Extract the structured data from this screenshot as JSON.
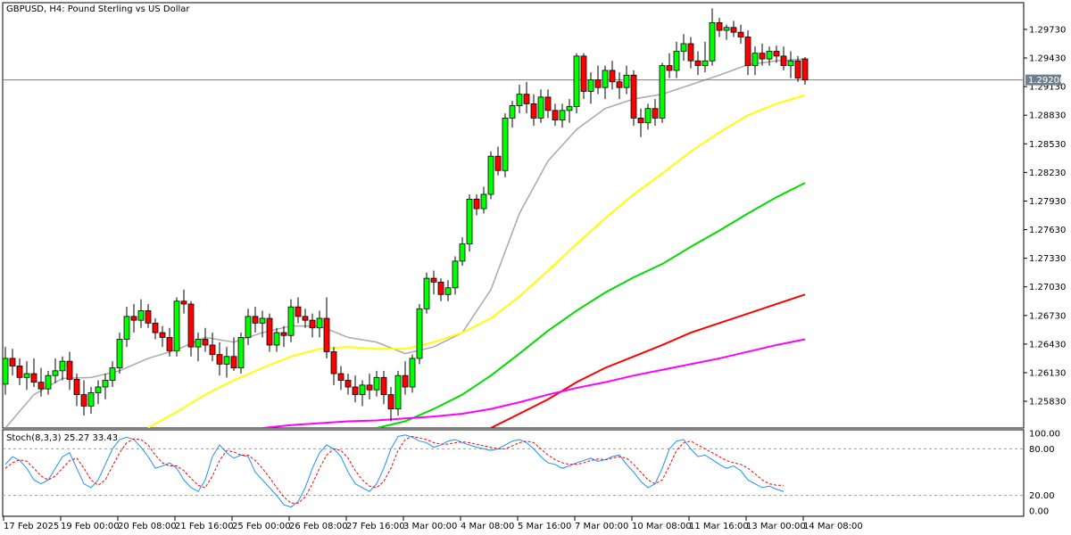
{
  "chart_data": {
    "type": "candlestick",
    "title": "GBPUSD, H4:  Pound Sterling vs US Dollar",
    "current_price": "1.29200",
    "price_axis": {
      "ticks": [
        "1.29730",
        "1.29430",
        "1.29130",
        "1.28830",
        "1.28530",
        "1.28230",
        "1.27930",
        "1.27630",
        "1.27330",
        "1.27030",
        "1.26730",
        "1.26430",
        "1.26130",
        "1.25830"
      ],
      "tick_values": [
        1.2973,
        1.2943,
        1.2913,
        1.2883,
        1.2853,
        1.2823,
        1.2793,
        1.2763,
        1.2733,
        1.2703,
        1.2673,
        1.2643,
        1.2613,
        1.2583
      ],
      "range": [
        1.2555,
        1.3001
      ]
    },
    "time_axis": {
      "ticks": [
        "17 Feb 2025",
        "19 Feb 00:00",
        "20 Feb 08:00",
        "21 Feb 16:00",
        "25 Feb 00:00",
        "26 Feb 08:00",
        "27 Feb 16:00",
        "3 Mar 00:00",
        "4 Mar 08:00",
        "5 Mar 16:00",
        "7 Mar 00:00",
        "10 Mar 08:00",
        "11 Mar 16:00",
        "13 Mar 00:00",
        "14 Mar 08:00"
      ],
      "tick_bar_index": [
        0,
        8,
        16,
        24,
        32,
        40,
        48,
        56,
        64,
        72,
        80,
        88,
        96,
        104,
        112
      ]
    },
    "candles": [
      {
        "o": 1.2601,
        "h": 1.264,
        "l": 1.259,
        "c": 1.2628
      },
      {
        "o": 1.2628,
        "h": 1.2638,
        "l": 1.261,
        "c": 1.262
      },
      {
        "o": 1.262,
        "h": 1.2628,
        "l": 1.26,
        "c": 1.2608
      },
      {
        "o": 1.2608,
        "h": 1.2625,
        "l": 1.2595,
        "c": 1.2612
      },
      {
        "o": 1.2612,
        "h": 1.2628,
        "l": 1.2598,
        "c": 1.2603
      },
      {
        "o": 1.2603,
        "h": 1.2618,
        "l": 1.2588,
        "c": 1.2596
      },
      {
        "o": 1.2596,
        "h": 1.2615,
        "l": 1.259,
        "c": 1.261
      },
      {
        "o": 1.261,
        "h": 1.2628,
        "l": 1.2602,
        "c": 1.2615
      },
      {
        "o": 1.2615,
        "h": 1.263,
        "l": 1.2605,
        "c": 1.2625
      },
      {
        "o": 1.2625,
        "h": 1.2635,
        "l": 1.2595,
        "c": 1.2606
      },
      {
        "o": 1.2606,
        "h": 1.2612,
        "l": 1.2578,
        "c": 1.259
      },
      {
        "o": 1.259,
        "h": 1.2605,
        "l": 1.2568,
        "c": 1.2578
      },
      {
        "o": 1.2578,
        "h": 1.2598,
        "l": 1.257,
        "c": 1.2592
      },
      {
        "o": 1.2592,
        "h": 1.2605,
        "l": 1.258,
        "c": 1.2598
      },
      {
        "o": 1.2598,
        "h": 1.2612,
        "l": 1.2585,
        "c": 1.2605
      },
      {
        "o": 1.2605,
        "h": 1.2625,
        "l": 1.2598,
        "c": 1.2618
      },
      {
        "o": 1.2618,
        "h": 1.2655,
        "l": 1.2612,
        "c": 1.2648
      },
      {
        "o": 1.2648,
        "h": 1.2682,
        "l": 1.264,
        "c": 1.2672
      },
      {
        "o": 1.2672,
        "h": 1.2685,
        "l": 1.2655,
        "c": 1.2668
      },
      {
        "o": 1.2668,
        "h": 1.269,
        "l": 1.266,
        "c": 1.2678
      },
      {
        "o": 1.2678,
        "h": 1.2685,
        "l": 1.266,
        "c": 1.2665
      },
      {
        "o": 1.2665,
        "h": 1.267,
        "l": 1.2648,
        "c": 1.2655
      },
      {
        "o": 1.2655,
        "h": 1.2662,
        "l": 1.264,
        "c": 1.265
      },
      {
        "o": 1.265,
        "h": 1.266,
        "l": 1.263,
        "c": 1.2636
      },
      {
        "o": 1.2636,
        "h": 1.2692,
        "l": 1.263,
        "c": 1.2688
      },
      {
        "o": 1.2688,
        "h": 1.27,
        "l": 1.2675,
        "c": 1.2685
      },
      {
        "o": 1.2685,
        "h": 1.2688,
        "l": 1.263,
        "c": 1.264
      },
      {
        "o": 1.264,
        "h": 1.2655,
        "l": 1.2625,
        "c": 1.2648
      },
      {
        "o": 1.2648,
        "h": 1.266,
        "l": 1.2635,
        "c": 1.2642
      },
      {
        "o": 1.2642,
        "h": 1.2655,
        "l": 1.2625,
        "c": 1.2632
      },
      {
        "o": 1.2632,
        "h": 1.2645,
        "l": 1.261,
        "c": 1.2622
      },
      {
        "o": 1.2622,
        "h": 1.264,
        "l": 1.2608,
        "c": 1.263
      },
      {
        "o": 1.263,
        "h": 1.265,
        "l": 1.2615,
        "c": 1.2618
      },
      {
        "o": 1.2618,
        "h": 1.2655,
        "l": 1.2612,
        "c": 1.265
      },
      {
        "o": 1.265,
        "h": 1.268,
        "l": 1.2642,
        "c": 1.2672
      },
      {
        "o": 1.2672,
        "h": 1.2682,
        "l": 1.2655,
        "c": 1.2665
      },
      {
        "o": 1.2665,
        "h": 1.2678,
        "l": 1.265,
        "c": 1.267
      },
      {
        "o": 1.267,
        "h": 1.2675,
        "l": 1.2635,
        "c": 1.2642
      },
      {
        "o": 1.2642,
        "h": 1.266,
        "l": 1.2635,
        "c": 1.2655
      },
      {
        "o": 1.2655,
        "h": 1.2662,
        "l": 1.264,
        "c": 1.2652
      },
      {
        "o": 1.2652,
        "h": 1.269,
        "l": 1.2645,
        "c": 1.2682
      },
      {
        "o": 1.2682,
        "h": 1.2692,
        "l": 1.2665,
        "c": 1.2672
      },
      {
        "o": 1.2672,
        "h": 1.268,
        "l": 1.266,
        "c": 1.2668
      },
      {
        "o": 1.2668,
        "h": 1.2675,
        "l": 1.265,
        "c": 1.266
      },
      {
        "o": 1.266,
        "h": 1.2678,
        "l": 1.265,
        "c": 1.267
      },
      {
        "o": 1.267,
        "h": 1.2692,
        "l": 1.2628,
        "c": 1.2635
      },
      {
        "o": 1.2635,
        "h": 1.264,
        "l": 1.26,
        "c": 1.2612
      },
      {
        "o": 1.2612,
        "h": 1.262,
        "l": 1.2595,
        "c": 1.2605
      },
      {
        "o": 1.2605,
        "h": 1.2612,
        "l": 1.259,
        "c": 1.2598
      },
      {
        "o": 1.2598,
        "h": 1.261,
        "l": 1.2582,
        "c": 1.259
      },
      {
        "o": 1.259,
        "h": 1.2605,
        "l": 1.2578,
        "c": 1.26
      },
      {
        "o": 1.26,
        "h": 1.2612,
        "l": 1.2585,
        "c": 1.2595
      },
      {
        "o": 1.2595,
        "h": 1.2615,
        "l": 1.2588,
        "c": 1.2608
      },
      {
        "o": 1.2608,
        "h": 1.2615,
        "l": 1.258,
        "c": 1.259
      },
      {
        "o": 1.259,
        "h": 1.2598,
        "l": 1.2562,
        "c": 1.2575
      },
      {
        "o": 1.2575,
        "h": 1.2615,
        "l": 1.2568,
        "c": 1.261
      },
      {
        "o": 1.261,
        "h": 1.2625,
        "l": 1.259,
        "c": 1.2598
      },
      {
        "o": 1.2598,
        "h": 1.2632,
        "l": 1.2592,
        "c": 1.2628
      },
      {
        "o": 1.2628,
        "h": 1.2685,
        "l": 1.2622,
        "c": 1.268
      },
      {
        "o": 1.268,
        "h": 1.2718,
        "l": 1.2675,
        "c": 1.2712
      },
      {
        "o": 1.2712,
        "h": 1.272,
        "l": 1.2695,
        "c": 1.2708
      },
      {
        "o": 1.2708,
        "h": 1.2712,
        "l": 1.2688,
        "c": 1.2695
      },
      {
        "o": 1.2695,
        "h": 1.271,
        "l": 1.2688,
        "c": 1.2702
      },
      {
        "o": 1.2702,
        "h": 1.2735,
        "l": 1.2695,
        "c": 1.273
      },
      {
        "o": 1.273,
        "h": 1.2755,
        "l": 1.2725,
        "c": 1.2748
      },
      {
        "o": 1.2748,
        "h": 1.28,
        "l": 1.274,
        "c": 1.2795
      },
      {
        "o": 1.2795,
        "h": 1.28,
        "l": 1.2778,
        "c": 1.2785
      },
      {
        "o": 1.2785,
        "h": 1.2808,
        "l": 1.278,
        "c": 1.28
      },
      {
        "o": 1.28,
        "h": 1.2845,
        "l": 1.2795,
        "c": 1.284
      },
      {
        "o": 1.284,
        "h": 1.285,
        "l": 1.282,
        "c": 1.2825
      },
      {
        "o": 1.2825,
        "h": 1.2885,
        "l": 1.2818,
        "c": 1.288
      },
      {
        "o": 1.288,
        "h": 1.2898,
        "l": 1.287,
        "c": 1.2893
      },
      {
        "o": 1.2893,
        "h": 1.2915,
        "l": 1.2885,
        "c": 1.2905
      },
      {
        "o": 1.2905,
        "h": 1.2918,
        "l": 1.2885,
        "c": 1.2895
      },
      {
        "o": 1.2895,
        "h": 1.2905,
        "l": 1.2872,
        "c": 1.288
      },
      {
        "o": 1.288,
        "h": 1.291,
        "l": 1.2875,
        "c": 1.2902
      },
      {
        "o": 1.2902,
        "h": 1.291,
        "l": 1.288,
        "c": 1.2888
      },
      {
        "o": 1.2888,
        "h": 1.2895,
        "l": 1.2872,
        "c": 1.2878
      },
      {
        "o": 1.2878,
        "h": 1.2895,
        "l": 1.287,
        "c": 1.2888
      },
      {
        "o": 1.2888,
        "h": 1.29,
        "l": 1.2875,
        "c": 1.2892
      },
      {
        "o": 1.2892,
        "h": 1.2948,
        "l": 1.2885,
        "c": 1.2945
      },
      {
        "o": 1.2945,
        "h": 1.2948,
        "l": 1.29,
        "c": 1.2908
      },
      {
        "o": 1.2908,
        "h": 1.2928,
        "l": 1.2895,
        "c": 1.292
      },
      {
        "o": 1.292,
        "h": 1.2935,
        "l": 1.2905,
        "c": 1.2912
      },
      {
        "o": 1.2912,
        "h": 1.2935,
        "l": 1.29,
        "c": 1.293
      },
      {
        "o": 1.293,
        "h": 1.294,
        "l": 1.291,
        "c": 1.2918
      },
      {
        "o": 1.2918,
        "h": 1.2928,
        "l": 1.29,
        "c": 1.2912
      },
      {
        "o": 1.2912,
        "h": 1.2935,
        "l": 1.2905,
        "c": 1.2925
      },
      {
        "o": 1.2925,
        "h": 1.293,
        "l": 1.2872,
        "c": 1.288
      },
      {
        "o": 1.288,
        "h": 1.289,
        "l": 1.286,
        "c": 1.2875
      },
      {
        "o": 1.2875,
        "h": 1.2895,
        "l": 1.2868,
        "c": 1.289
      },
      {
        "o": 1.289,
        "h": 1.29,
        "l": 1.2872,
        "c": 1.288
      },
      {
        "o": 1.288,
        "h": 1.2938,
        "l": 1.2875,
        "c": 1.2935
      },
      {
        "o": 1.2935,
        "h": 1.2948,
        "l": 1.2922,
        "c": 1.293
      },
      {
        "o": 1.293,
        "h": 1.296,
        "l": 1.2922,
        "c": 1.295
      },
      {
        "o": 1.295,
        "h": 1.2968,
        "l": 1.294,
        "c": 1.2958
      },
      {
        "o": 1.2958,
        "h": 1.2965,
        "l": 1.2932,
        "c": 1.294
      },
      {
        "o": 1.294,
        "h": 1.295,
        "l": 1.2925,
        "c": 1.2935
      },
      {
        "o": 1.2935,
        "h": 1.296,
        "l": 1.2928,
        "c": 1.294
      },
      {
        "o": 1.294,
        "h": 1.2995,
        "l": 1.2935,
        "c": 1.298
      },
      {
        "o": 1.298,
        "h": 1.2985,
        "l": 1.2965,
        "c": 1.2972
      },
      {
        "o": 1.2972,
        "h": 1.2978,
        "l": 1.2962,
        "c": 1.2975
      },
      {
        "o": 1.2975,
        "h": 1.2982,
        "l": 1.2965,
        "c": 1.297
      },
      {
        "o": 1.297,
        "h": 1.2978,
        "l": 1.2958,
        "c": 1.2965
      },
      {
        "o": 1.2965,
        "h": 1.2972,
        "l": 1.2925,
        "c": 1.2935
      },
      {
        "o": 1.2935,
        "h": 1.2955,
        "l": 1.2925,
        "c": 1.2948
      },
      {
        "o": 1.2948,
        "h": 1.2958,
        "l": 1.2935,
        "c": 1.2942
      },
      {
        "o": 1.2942,
        "h": 1.2955,
        "l": 1.2935,
        "c": 1.295
      },
      {
        "o": 1.295,
        "h": 1.2956,
        "l": 1.2938,
        "c": 1.2945
      },
      {
        "o": 1.2945,
        "h": 1.2955,
        "l": 1.293,
        "c": 1.2935
      },
      {
        "o": 1.2935,
        "h": 1.295,
        "l": 1.2922,
        "c": 1.294
      },
      {
        "o": 1.294,
        "h": 1.2945,
        "l": 1.2918,
        "c": 1.2922
      },
      {
        "o": 1.2942,
        "h": 1.2944,
        "l": 1.2915,
        "c": 1.292
      }
    ],
    "series": [
      {
        "color": "#a9a9a9",
        "x": [
          0,
          4,
          8,
          12,
          16,
          20,
          24,
          28,
          32,
          36,
          40,
          44,
          48,
          52,
          56,
          60,
          64,
          68,
          72,
          76,
          80,
          84,
          88,
          92,
          96,
          100,
          104,
          108,
          112
        ],
        "values": [
          1.2555,
          1.259,
          1.2607,
          1.2608,
          1.2615,
          1.2628,
          1.2637,
          1.265,
          1.2645,
          1.2655,
          1.2662,
          1.2662,
          1.265,
          1.2645,
          1.2633,
          1.264,
          1.2655,
          1.27,
          1.278,
          1.2835,
          1.2868,
          1.289,
          1.29,
          1.2905,
          1.2915,
          1.2925,
          1.2936,
          1.294,
          1.2942
        ]
      },
      {
        "color": "#ffff00",
        "x": [
          20,
          24,
          28,
          32,
          36,
          40,
          44,
          48,
          52,
          56,
          60,
          64,
          68,
          72,
          76,
          80,
          84,
          88,
          92,
          96,
          100,
          104,
          108,
          112
        ],
        "values": [
          1.2555,
          1.2572,
          1.259,
          1.2605,
          1.2618,
          1.263,
          1.2638,
          1.264,
          1.2638,
          1.2638,
          1.2645,
          1.2655,
          1.267,
          1.2693,
          1.272,
          1.2748,
          1.2775,
          1.28,
          1.2822,
          1.2845,
          1.2865,
          1.2883,
          1.2895,
          1.2904
        ]
      },
      {
        "color": "#00dd00",
        "x": [
          52,
          56,
          60,
          64,
          68,
          72,
          76,
          80,
          84,
          88,
          92,
          96,
          100,
          104,
          108,
          112
        ],
        "values": [
          1.2555,
          1.2562,
          1.2575,
          1.259,
          1.261,
          1.2633,
          1.2657,
          1.2678,
          1.2697,
          1.2713,
          1.2727,
          1.2745,
          1.2762,
          1.278,
          1.2797,
          1.2812
        ]
      },
      {
        "color": "#ff0000",
        "x": [
          68,
          72,
          76,
          80,
          84,
          88,
          92,
          96,
          100,
          104,
          108,
          112
        ],
        "values": [
          1.2555,
          1.257,
          1.2585,
          1.2603,
          1.2618,
          1.263,
          1.2642,
          1.2655,
          1.2665,
          1.2675,
          1.2685,
          1.2695
        ]
      },
      {
        "color": "#ff00ff",
        "x": [
          36,
          40,
          44,
          48,
          52,
          56,
          60,
          64,
          68,
          72,
          76,
          80,
          84,
          88,
          92,
          96,
          100,
          104,
          108,
          112
        ],
        "values": [
          1.2555,
          1.2558,
          1.256,
          1.2562,
          1.2563,
          1.2565,
          1.2567,
          1.257,
          1.2575,
          1.2582,
          1.259,
          1.2597,
          1.2603,
          1.261,
          1.2616,
          1.2622,
          1.2628,
          1.2635,
          1.2642,
          1.2648
        ]
      }
    ],
    "stochastic": {
      "label": "Stoch(8,3,3) 25.27 33.43",
      "ticks": [
        "100.00",
        "80.00",
        "20.00",
        "0.00"
      ],
      "tick_values": [
        100,
        80,
        20,
        0
      ],
      "levels": [
        80,
        20
      ],
      "main_color": "#1e90ff",
      "signal_color": "#ff0000",
      "main": [
        60,
        70,
        65,
        55,
        40,
        35,
        40,
        55,
        70,
        75,
        55,
        35,
        30,
        40,
        60,
        80,
        92,
        95,
        92,
        82,
        70,
        55,
        58,
        62,
        55,
        40,
        30,
        25,
        40,
        70,
        85,
        75,
        68,
        72,
        70,
        50,
        40,
        30,
        20,
        8,
        5,
        12,
        30,
        55,
        75,
        85,
        80,
        70,
        50,
        35,
        30,
        25,
        35,
        55,
        80,
        96,
        98,
        95,
        90,
        88,
        82,
        85,
        90,
        92,
        88,
        85,
        82,
        80,
        78,
        80,
        85,
        90,
        92,
        88,
        80,
        70,
        62,
        60,
        55,
        58,
        62,
        65,
        68,
        64,
        66,
        70,
        72,
        60,
        50,
        38,
        30,
        35,
        55,
        80,
        90,
        92,
        80,
        70,
        72,
        66,
        60,
        55,
        58,
        52,
        40,
        35,
        30,
        32,
        28,
        25
      ],
      "signal": [
        55,
        62,
        66,
        64,
        55,
        45,
        40,
        45,
        55,
        65,
        68,
        55,
        40,
        33,
        40,
        58,
        75,
        88,
        93,
        92,
        85,
        72,
        62,
        58,
        58,
        52,
        42,
        33,
        30,
        45,
        65,
        78,
        76,
        72,
        72,
        65,
        55,
        43,
        30,
        18,
        10,
        10,
        18,
        35,
        55,
        72,
        80,
        78,
        68,
        52,
        40,
        32,
        30,
        38,
        55,
        78,
        92,
        96,
        94,
        92,
        88,
        86,
        86,
        88,
        89,
        88,
        86,
        84,
        82,
        80,
        80,
        84,
        88,
        90,
        88,
        80,
        72,
        66,
        62,
        60,
        60,
        62,
        65,
        67,
        66,
        68,
        70,
        68,
        60,
        50,
        40,
        35,
        40,
        58,
        78,
        88,
        90,
        85,
        80,
        75,
        70,
        65,
        62,
        60,
        55,
        48,
        40,
        35,
        33,
        33
      ]
    }
  }
}
